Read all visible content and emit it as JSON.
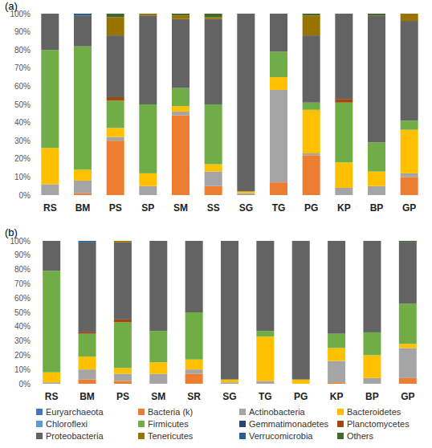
{
  "chart_data": [
    {
      "type": "bar",
      "title": "(a)",
      "stacked": true,
      "grid": false,
      "categories": [
        "RS",
        "BM",
        "PS",
        "SP",
        "SM",
        "SS",
        "SG",
        "TG",
        "PG",
        "KP",
        "BP",
        "GP"
      ],
      "ylim": [
        0,
        100
      ],
      "yticks": [
        {
          "value": 0,
          "label": "0%"
        },
        {
          "value": 10,
          "label": "10%"
        },
        {
          "value": 20,
          "label": "20%"
        },
        {
          "value": 30,
          "label": "30%"
        },
        {
          "value": 40,
          "label": "40%"
        },
        {
          "value": 50,
          "label": "50%"
        },
        {
          "value": 60,
          "label": "60%"
        },
        {
          "value": 70,
          "label": "70%"
        },
        {
          "value": 80,
          "label": "80%"
        },
        {
          "value": 90,
          "label": "90%"
        },
        {
          "value": 100,
          "label": "100%"
        }
      ],
      "series": [
        {
          "name": "Euryarchaeota",
          "color": "#4472c4",
          "values": [
            0,
            0,
            0,
            0,
            0,
            0,
            0,
            0,
            0,
            0,
            0,
            0
          ]
        },
        {
          "name": "Bacteria (k)",
          "color": "#ed7d31",
          "values": [
            0,
            1,
            30,
            0,
            44,
            5,
            0,
            7,
            22,
            0,
            0,
            10
          ]
        },
        {
          "name": "Actinobacteria",
          "color": "#a5a5a5",
          "values": [
            6,
            7,
            2,
            5,
            2,
            8,
            1,
            51,
            1,
            4,
            5,
            2
          ]
        },
        {
          "name": "Bacteroidetes",
          "color": "#ffc000",
          "values": [
            20,
            6,
            5,
            7,
            3,
            4,
            1,
            7,
            24,
            14,
            8,
            24
          ]
        },
        {
          "name": "Chloroflexi",
          "color": "#5b9bd5",
          "values": [
            0,
            0,
            0,
            0,
            0,
            0,
            0,
            0,
            0,
            0,
            0,
            0
          ]
        },
        {
          "name": "Firmicutes",
          "color": "#70ad47",
          "values": [
            54,
            68,
            15,
            38,
            10,
            33,
            0,
            14,
            4,
            33,
            16,
            5
          ]
        },
        {
          "name": "Gemmatimonadetes",
          "color": "#264478",
          "values": [
            0,
            0,
            0,
            0,
            0,
            0,
            0,
            0,
            0,
            0,
            0,
            0
          ]
        },
        {
          "name": "Planctomycetes",
          "color": "#9e480e",
          "values": [
            0,
            0,
            2,
            0,
            0,
            0,
            0,
            0,
            0,
            2,
            0,
            0
          ]
        },
        {
          "name": "Proteobacteria",
          "color": "#636363",
          "values": [
            20,
            17,
            34,
            49,
            38,
            47,
            98,
            21,
            37,
            47,
            70,
            55
          ]
        },
        {
          "name": "Tenericutes",
          "color": "#997300",
          "values": [
            0,
            0,
            10,
            1,
            2,
            1,
            0,
            0,
            11,
            0,
            0,
            4
          ]
        },
        {
          "name": "Verrucomicrobia",
          "color": "#255e91",
          "values": [
            0,
            1,
            0,
            0,
            0,
            0,
            0,
            0,
            0,
            0,
            0,
            0
          ]
        },
        {
          "name": "Others",
          "color": "#43682b",
          "values": [
            0,
            0,
            2,
            0,
            1,
            2,
            0,
            0,
            1,
            0,
            1,
            0
          ]
        }
      ]
    },
    {
      "type": "bar",
      "title": "(b)",
      "stacked": true,
      "grid": false,
      "legend": "bottom",
      "categories": [
        "RS",
        "BM",
        "PS",
        "SM",
        "SR",
        "SG",
        "TG",
        "PG",
        "KP",
        "BP",
        "GP"
      ],
      "ylim": [
        0,
        100
      ],
      "yticks": [
        {
          "value": 0,
          "label": "0%"
        },
        {
          "value": 10,
          "label": "10%"
        },
        {
          "value": 20,
          "label": "20%"
        },
        {
          "value": 30,
          "label": "30%"
        },
        {
          "value": 40,
          "label": "40%"
        },
        {
          "value": 50,
          "label": "50%"
        },
        {
          "value": 60,
          "label": "60%"
        },
        {
          "value": 70,
          "label": "70%"
        },
        {
          "value": 80,
          "label": "80%"
        },
        {
          "value": 90,
          "label": "90%"
        },
        {
          "value": 100,
          "label": "100%"
        }
      ],
      "series": [
        {
          "name": "Euryarchaeota",
          "color": "#4472c4",
          "values": [
            0,
            0,
            0,
            0,
            0,
            0,
            0,
            0,
            0,
            0,
            0
          ]
        },
        {
          "name": "Bacteria (k)",
          "color": "#ed7d31",
          "values": [
            0,
            3,
            2,
            0,
            7,
            0,
            0,
            0,
            1,
            0,
            4
          ]
        },
        {
          "name": "Actinobacteria",
          "color": "#a5a5a5",
          "values": [
            1,
            7,
            5,
            7,
            3,
            1,
            2,
            0,
            15,
            4,
            21
          ]
        },
        {
          "name": "Bacteroidetes",
          "color": "#ffc000",
          "values": [
            7,
            9,
            4,
            8,
            7,
            2,
            31,
            3,
            9,
            16,
            3
          ]
        },
        {
          "name": "Chloroflexi",
          "color": "#5b9bd5",
          "values": [
            0,
            0,
            0,
            0,
            0,
            0,
            0,
            0,
            0,
            0,
            0
          ]
        },
        {
          "name": "Firmicutes",
          "color": "#70ad47",
          "values": [
            71,
            16,
            32,
            22,
            33,
            0,
            4,
            0,
            10,
            16,
            28
          ]
        },
        {
          "name": "Gemmatimonadetes",
          "color": "#264478",
          "values": [
            0,
            0,
            0,
            0,
            0,
            0,
            0,
            0,
            0,
            0,
            0
          ]
        },
        {
          "name": "Planctomycetes",
          "color": "#9e480e",
          "values": [
            0,
            1,
            2,
            0,
            0,
            0,
            0,
            0,
            0,
            0,
            0
          ]
        },
        {
          "name": "Proteobacteria",
          "color": "#636363",
          "values": [
            21,
            63,
            54,
            63,
            50,
            97,
            63,
            97,
            65,
            64,
            43
          ]
        },
        {
          "name": "Tenericutes",
          "color": "#997300",
          "values": [
            0,
            0,
            1,
            0,
            0,
            0,
            0,
            0,
            0,
            0,
            0
          ]
        },
        {
          "name": "Verrucomicrobia",
          "color": "#255e91",
          "values": [
            0,
            1,
            0,
            0,
            0,
            0,
            0,
            0,
            0,
            0,
            0
          ]
        },
        {
          "name": "Others",
          "color": "#43682b",
          "values": [
            0,
            0,
            0,
            0,
            0,
            0,
            0,
            0,
            0,
            0,
            1
          ]
        }
      ]
    }
  ]
}
